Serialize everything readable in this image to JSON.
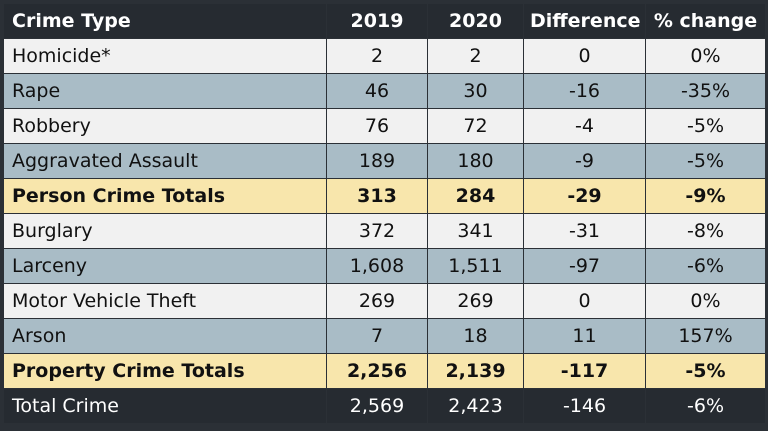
{
  "headers": [
    "Crime Type",
    "2019",
    "2020",
    "Difference",
    "% change"
  ],
  "rows": [
    {
      "type": "Homicide*",
      "y2019": "2",
      "y2020": "2",
      "difference": "0",
      "pct_change": "0%"
    },
    {
      "type": "Rape",
      "y2019": "46",
      "y2020": "30",
      "difference": "-16",
      "pct_change": "-35%"
    },
    {
      "type": "Robbery",
      "y2019": "76",
      "y2020": "72",
      "difference": "-4",
      "pct_change": "-5%"
    },
    {
      "type": "Aggravated Assault",
      "y2019": "189",
      "y2020": "180",
      "difference": "-9",
      "pct_change": "-5%"
    },
    {
      "type": "Person Crime Totals",
      "y2019": "313",
      "y2020": "284",
      "difference": "-29",
      "pct_change": "-9%"
    },
    {
      "type": "Burglary",
      "y2019": "372",
      "y2020": "341",
      "difference": "-31",
      "pct_change": "-8%"
    },
    {
      "type": "Larceny",
      "y2019": "1,608",
      "y2020": "1,511",
      "difference": "-97",
      "pct_change": "-6%"
    },
    {
      "type": "Motor Vehicle Theft",
      "y2019": "269",
      "y2020": "269",
      "difference": "0",
      "pct_change": "0%"
    },
    {
      "type": "Arson",
      "y2019": "7",
      "y2020": "18",
      "difference": "11",
      "pct_change": "157%"
    },
    {
      "type": "Property Crime Totals",
      "y2019": "2,256",
      "y2020": "2,139",
      "difference": "-117",
      "pct_change": "-5%"
    },
    {
      "type": "Total Crime",
      "y2019": "2,569",
      "y2020": "2,423",
      "difference": "-146",
      "pct_change": "-6%"
    }
  ],
  "colors": {
    "header_bg": "#262b31",
    "row_light": "#f1f1f1",
    "row_blue": "#a9bcc6",
    "row_total": "#f8e6ac"
  }
}
